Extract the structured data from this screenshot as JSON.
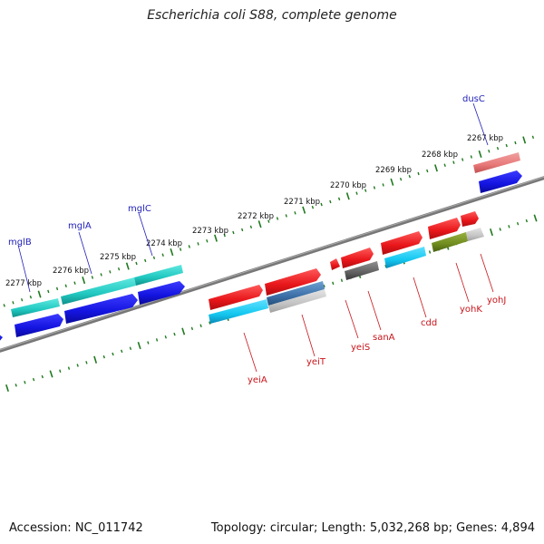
{
  "title": "Escherichia coli S88, complete genome",
  "footer": {
    "accession": "Accession: NC_011742",
    "info": "Topology: circular; Length: 5,032,268 bp; Genes: 4,894"
  },
  "kbp_labels": [
    "2277 kbp",
    "2276 kbp",
    "2275 kbp",
    "2274 kbp",
    "2273 kbp",
    "2272 kbp",
    "2271 kbp",
    "2270 kbp",
    "2269 kbp",
    "2268 kbp",
    "2267 kbp"
  ],
  "genes_top": [
    "mglB",
    "mglA",
    "mglC",
    "dusC"
  ],
  "genes_bottom": [
    "yeiA",
    "yeiT",
    "yeiS",
    "sanA",
    "cdd",
    "yohK",
    "yohJ"
  ],
  "colors": {
    "red": "#e8161a",
    "blue": "#1414e0",
    "cyan": "#14c8f0",
    "teal": "#20c8c0",
    "gray": "#606060",
    "olive": "#6f8c1e",
    "pink": "#e87878"
  }
}
